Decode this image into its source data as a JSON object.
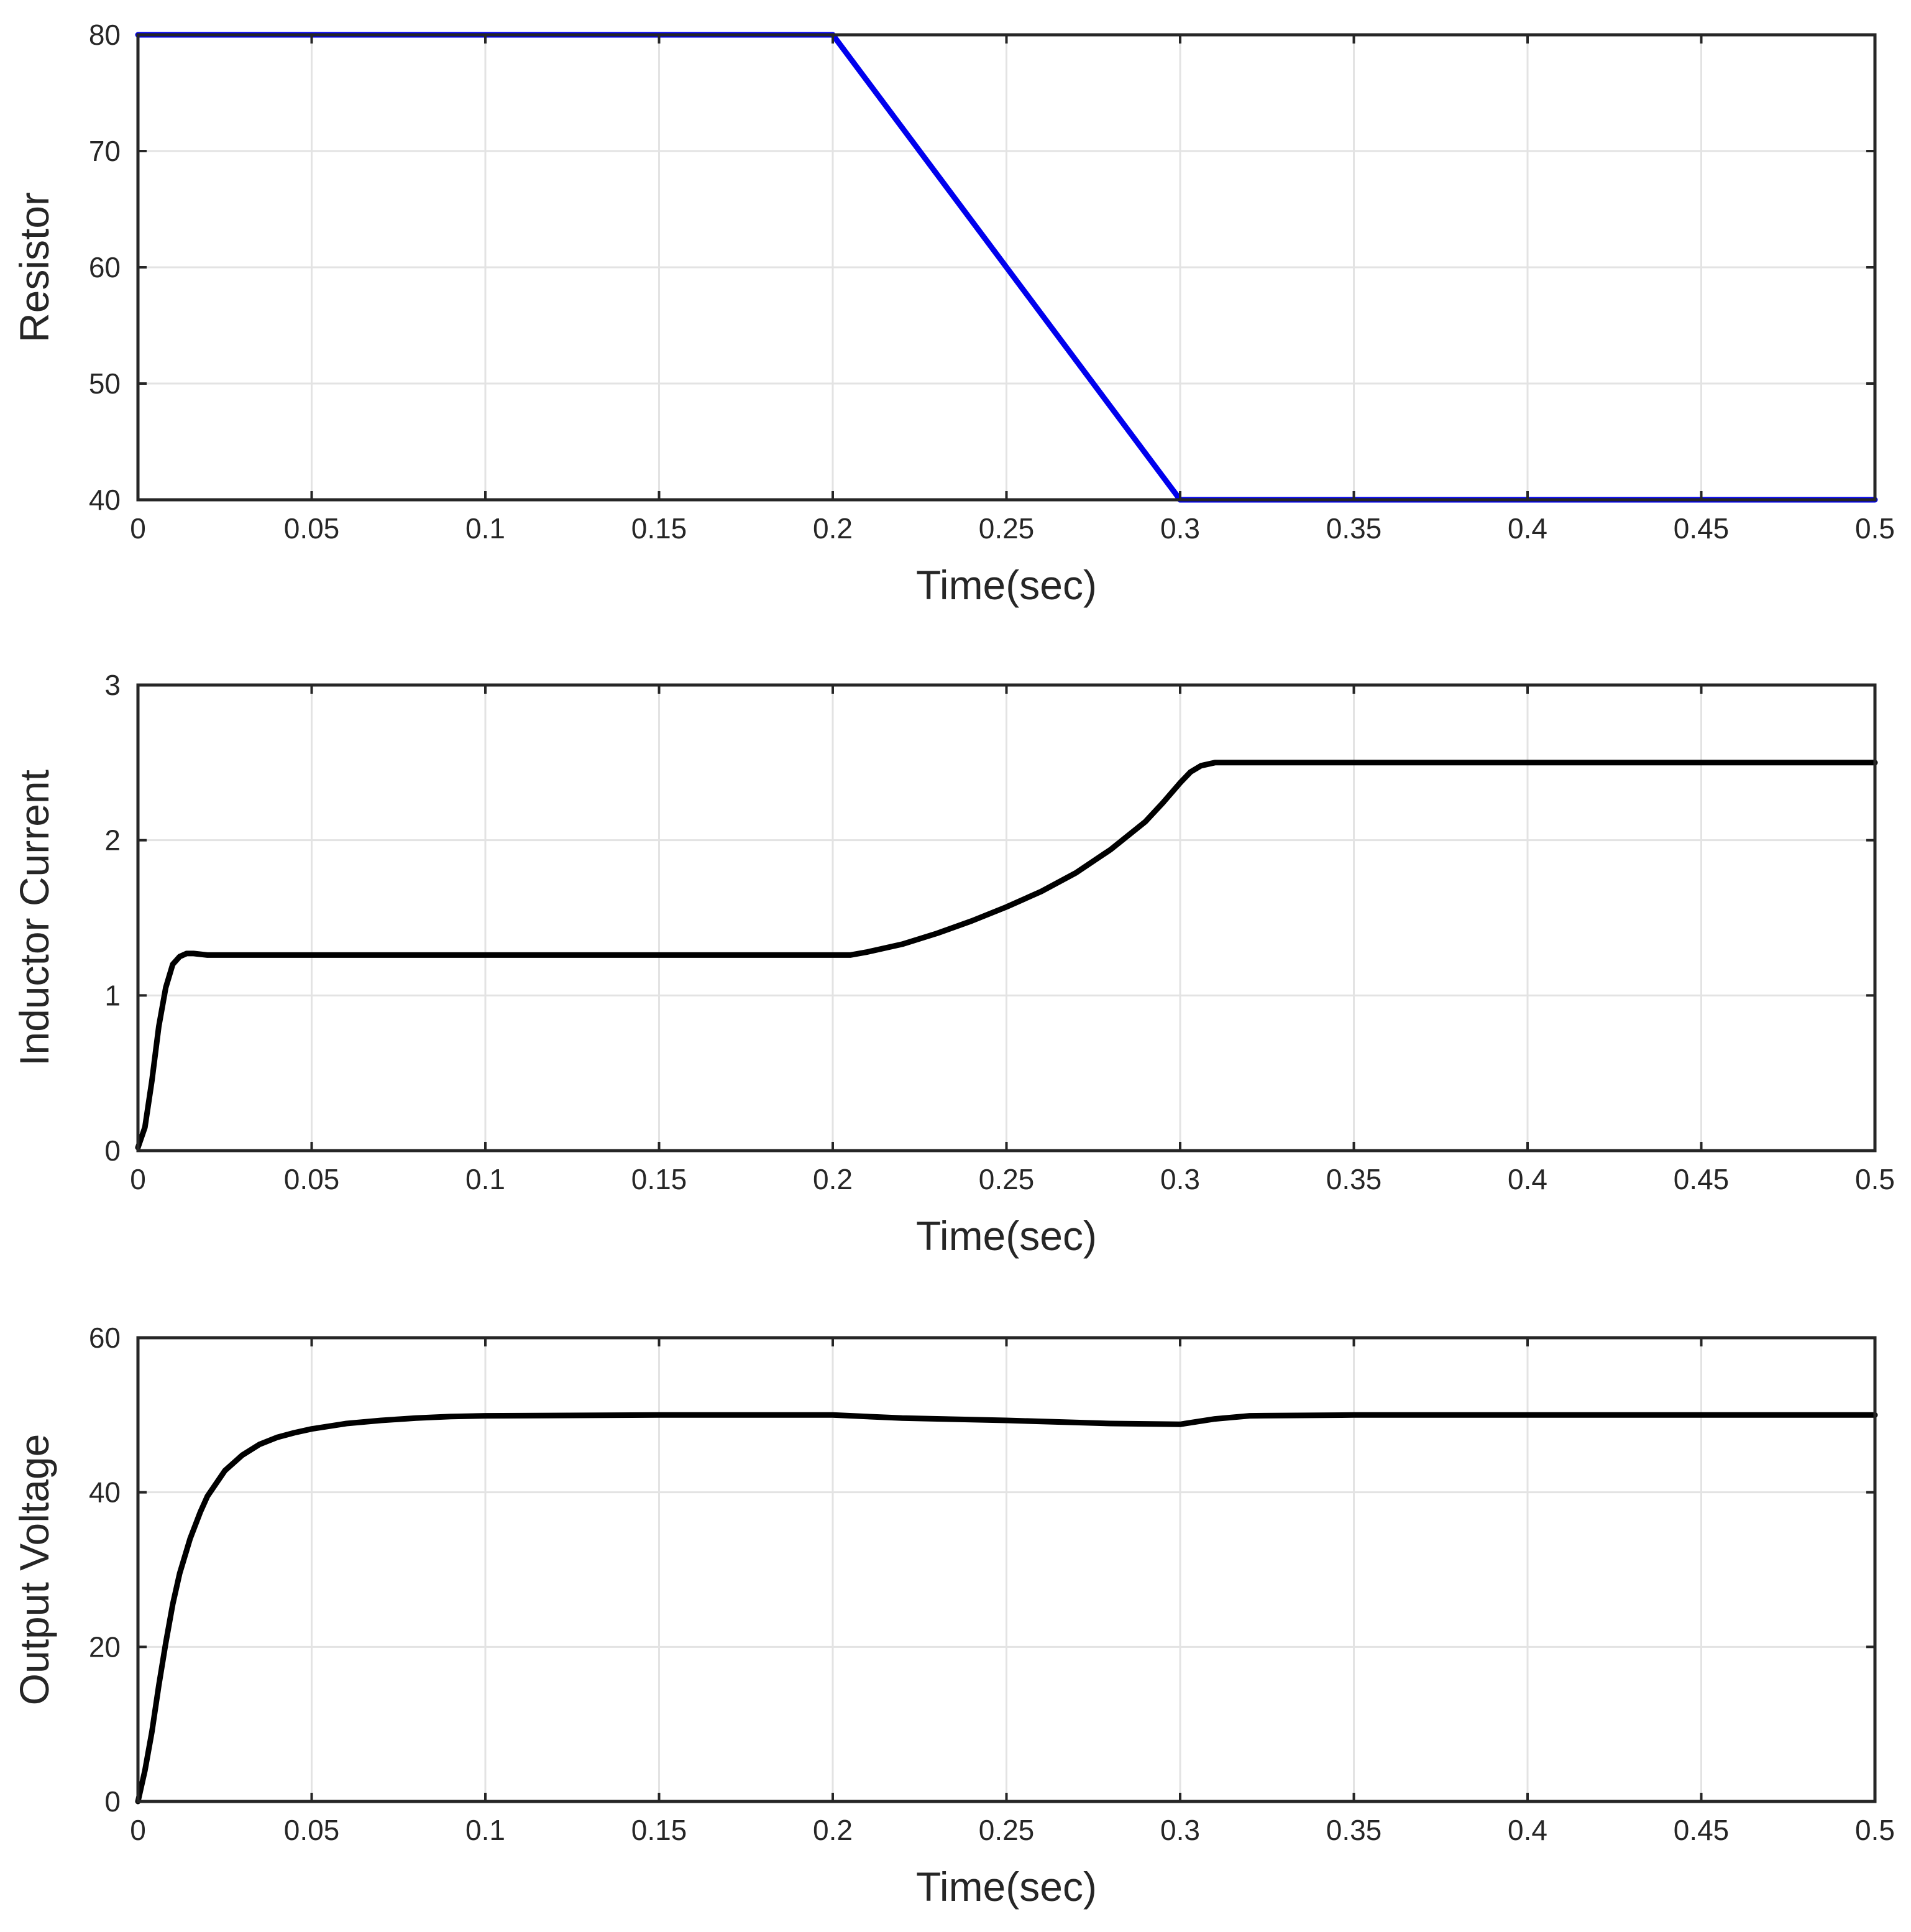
{
  "chart_data": [
    {
      "type": "line",
      "xlabel": "Time(sec)",
      "ylabel": "Resistor",
      "xlim": [
        0,
        0.5
      ],
      "ylim": [
        40,
        80
      ],
      "xticks": [
        0,
        0.05,
        0.1,
        0.15,
        0.2,
        0.25,
        0.3,
        0.35,
        0.4,
        0.45,
        0.5
      ],
      "xtick_labels": [
        "0",
        "0.05",
        "0.1",
        "0.15",
        "0.2",
        "0.25",
        "0.3",
        "0.35",
        "0.4",
        "0.45",
        "0.5"
      ],
      "yticks": [
        40,
        50,
        60,
        70,
        80
      ],
      "ytick_labels": [
        "40",
        "50",
        "60",
        "70",
        "80"
      ],
      "grid": true,
      "series": [
        {
          "color": "#0000ee",
          "x": [
            0,
            0.2,
            0.3,
            0.5
          ],
          "y": [
            80,
            80,
            40,
            40
          ]
        }
      ]
    },
    {
      "type": "line",
      "xlabel": "Time(sec)",
      "ylabel": "Inductor Current",
      "xlim": [
        0,
        0.5
      ],
      "ylim": [
        0,
        3
      ],
      "xticks": [
        0,
        0.05,
        0.1,
        0.15,
        0.2,
        0.25,
        0.3,
        0.35,
        0.4,
        0.45,
        0.5
      ],
      "xtick_labels": [
        "0",
        "0.05",
        "0.1",
        "0.15",
        "0.2",
        "0.25",
        "0.3",
        "0.35",
        "0.4",
        "0.45",
        "0.5"
      ],
      "yticks": [
        0,
        1,
        2,
        3
      ],
      "ytick_labels": [
        "0",
        "1",
        "2",
        "3"
      ],
      "grid": true,
      "series": [
        {
          "color": "#000000",
          "x": [
            0,
            0.002,
            0.004,
            0.006,
            0.008,
            0.01,
            0.012,
            0.014,
            0.016,
            0.02,
            0.05,
            0.1,
            0.15,
            0.2,
            0.205,
            0.21,
            0.22,
            0.23,
            0.24,
            0.25,
            0.26,
            0.27,
            0.28,
            0.29,
            0.295,
            0.3,
            0.303,
            0.306,
            0.31,
            0.35,
            0.4,
            0.45,
            0.5
          ],
          "y": [
            0.02,
            0.15,
            0.45,
            0.8,
            1.05,
            1.2,
            1.25,
            1.27,
            1.27,
            1.26,
            1.26,
            1.26,
            1.26,
            1.26,
            1.26,
            1.28,
            1.33,
            1.4,
            1.48,
            1.57,
            1.67,
            1.79,
            1.94,
            2.12,
            2.24,
            2.37,
            2.44,
            2.48,
            2.5,
            2.5,
            2.5,
            2.5,
            2.5
          ]
        }
      ]
    },
    {
      "type": "line",
      "xlabel": "Time(sec)",
      "ylabel": "Output Voltage",
      "xlim": [
        0,
        0.5
      ],
      "ylim": [
        0,
        60
      ],
      "xticks": [
        0,
        0.05,
        0.1,
        0.15,
        0.2,
        0.25,
        0.3,
        0.35,
        0.4,
        0.45,
        0.5
      ],
      "xtick_labels": [
        "0",
        "0.05",
        "0.1",
        "0.15",
        "0.2",
        "0.25",
        "0.3",
        "0.35",
        "0.4",
        "0.45",
        "0.5"
      ],
      "yticks": [
        0,
        20,
        40,
        60
      ],
      "ytick_labels": [
        "0",
        "20",
        "40",
        "60"
      ],
      "grid": true,
      "series": [
        {
          "color": "#000000",
          "x": [
            0,
            0.002,
            0.004,
            0.006,
            0.008,
            0.01,
            0.012,
            0.015,
            0.018,
            0.02,
            0.025,
            0.03,
            0.035,
            0.04,
            0.045,
            0.05,
            0.06,
            0.07,
            0.08,
            0.09,
            0.1,
            0.15,
            0.2,
            0.22,
            0.25,
            0.28,
            0.3,
            0.31,
            0.32,
            0.35,
            0.4,
            0.45,
            0.5
          ],
          "y": [
            0,
            4,
            9,
            15,
            20.5,
            25.5,
            29.5,
            34,
            37.5,
            39.5,
            42.8,
            44.8,
            46.2,
            47.1,
            47.7,
            48.2,
            48.9,
            49.3,
            49.6,
            49.8,
            49.9,
            50,
            50,
            49.6,
            49.3,
            48.9,
            48.8,
            49.5,
            49.9,
            50,
            50,
            50,
            50
          ]
        }
      ]
    }
  ]
}
